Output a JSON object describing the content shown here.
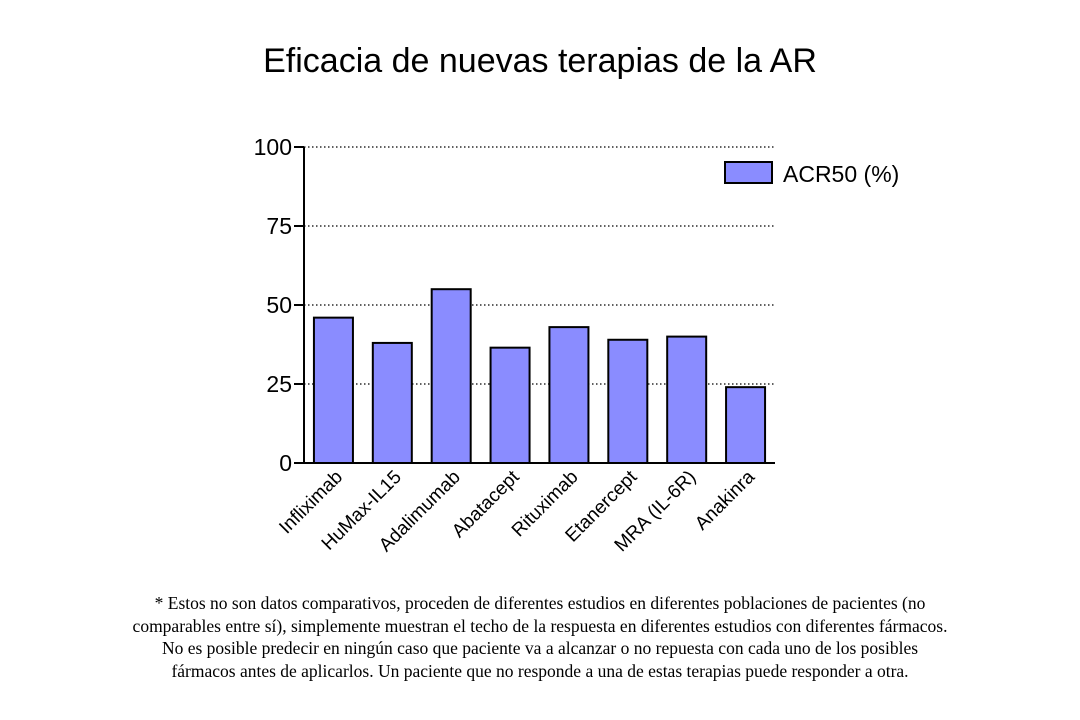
{
  "chart_data": {
    "type": "bar",
    "title": "Eficacia de nuevas terapias de la AR",
    "categories": [
      "Infliximab",
      "HuMax-IL15",
      "Adalimumab",
      "Abatacept",
      "Rituximab",
      "Etanercept",
      "MRA (IL-6R)",
      "Anakinra"
    ],
    "series": [
      {
        "name": "ACR50 (%)",
        "values": [
          46,
          38,
          55,
          36.5,
          43,
          39,
          40,
          24
        ],
        "color": "#8a8cff"
      }
    ],
    "ylim": [
      0,
      100
    ],
    "yticks": [
      "0",
      "25",
      "50",
      "75",
      "100"
    ],
    "grid": "horizontal dotted at major ticks",
    "legend": "top-right"
  },
  "footnote": {
    "lines": [
      "* Estos no son datos comparativos, proceden de diferentes estudios en diferentes poblaciones de pacientes (no",
      "comparables entre sí), simplemente muestran el techo de la respuesta en diferentes estudios con diferentes fármacos.",
      "No es posible predecir en ningún caso que paciente va a alcanzar o no repuesta con cada uno de los posibles",
      "fármacos antes de aplicarlos. Un paciente que no responde a una de estas terapias puede responder a otra."
    ]
  }
}
